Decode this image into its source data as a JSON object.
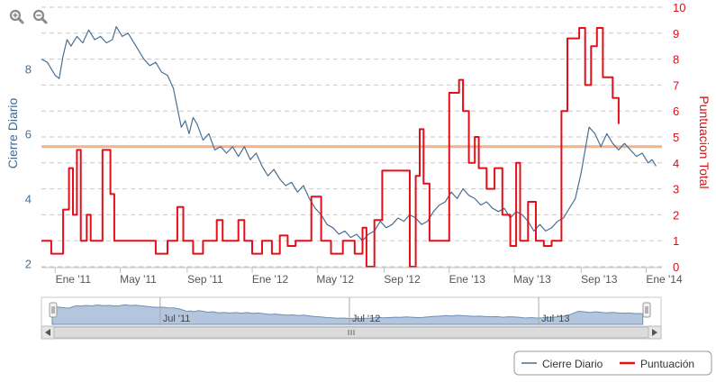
{
  "chart_data": {
    "type": "line",
    "xlabel": "",
    "y_left": {
      "label": "Cierre Diario",
      "ticks": [
        "2",
        "4",
        "6",
        "8"
      ],
      "range": [
        1.9,
        9.9
      ]
    },
    "y_right": {
      "label": "Puntuacion Total",
      "ticks": [
        "0",
        "1",
        "2",
        "3",
        "4",
        "5",
        "6",
        "7",
        "8",
        "9",
        "10"
      ],
      "range": [
        0,
        10
      ]
    },
    "x_ticks": [
      "Ene '11",
      "May '11",
      "Sep '11",
      "Ene '12",
      "May '12",
      "Sep '12",
      "Ene '13",
      "May '13",
      "Sep '13",
      "Ene '14"
    ],
    "x_range": [
      2010.93,
      2014.08
    ],
    "grid": true,
    "plot_band_value": 5.6,
    "series": [
      {
        "name": "Cierre Diario",
        "axis": "left",
        "color": "#4a6f93",
        "points": [
          [
            2010.93,
            8.3
          ],
          [
            2010.96,
            8.2
          ],
          [
            2010.98,
            8.0
          ],
          [
            2011.0,
            7.8
          ],
          [
            2011.02,
            7.7
          ],
          [
            2011.04,
            8.4
          ],
          [
            2011.06,
            8.9
          ],
          [
            2011.08,
            8.7
          ],
          [
            2011.11,
            9.0
          ],
          [
            2011.14,
            8.8
          ],
          [
            2011.17,
            9.2
          ],
          [
            2011.2,
            8.9
          ],
          [
            2011.23,
            9.0
          ],
          [
            2011.26,
            8.8
          ],
          [
            2011.29,
            8.9
          ],
          [
            2011.31,
            9.3
          ],
          [
            2011.34,
            9.0
          ],
          [
            2011.37,
            9.1
          ],
          [
            2011.4,
            8.8
          ],
          [
            2011.42,
            8.6
          ],
          [
            2011.45,
            8.3
          ],
          [
            2011.48,
            8.1
          ],
          [
            2011.51,
            8.2
          ],
          [
            2011.54,
            7.9
          ],
          [
            2011.57,
            7.8
          ],
          [
            2011.6,
            7.4
          ],
          [
            2011.62,
            6.8
          ],
          [
            2011.64,
            6.2
          ],
          [
            2011.66,
            6.4
          ],
          [
            2011.68,
            6.0
          ],
          [
            2011.7,
            6.5
          ],
          [
            2011.72,
            6.3
          ],
          [
            2011.75,
            5.8
          ],
          [
            2011.78,
            6.0
          ],
          [
            2011.81,
            5.5
          ],
          [
            2011.84,
            5.6
          ],
          [
            2011.87,
            5.4
          ],
          [
            2011.9,
            5.6
          ],
          [
            2011.93,
            5.3
          ],
          [
            2011.96,
            5.6
          ],
          [
            2011.99,
            5.2
          ],
          [
            2012.02,
            5.4
          ],
          [
            2012.05,
            5.0
          ],
          [
            2012.08,
            4.7
          ],
          [
            2012.11,
            4.9
          ],
          [
            2012.14,
            4.6
          ],
          [
            2012.17,
            4.4
          ],
          [
            2012.2,
            4.5
          ],
          [
            2012.23,
            4.2
          ],
          [
            2012.26,
            4.4
          ],
          [
            2012.29,
            4.0
          ],
          [
            2012.32,
            3.7
          ],
          [
            2012.35,
            3.5
          ],
          [
            2012.38,
            3.2
          ],
          [
            2012.41,
            3.1
          ],
          [
            2012.44,
            2.9
          ],
          [
            2012.47,
            3.0
          ],
          [
            2012.5,
            2.8
          ],
          [
            2012.53,
            2.9
          ],
          [
            2012.56,
            2.7
          ],
          [
            2012.59,
            2.9
          ],
          [
            2012.62,
            3.0
          ],
          [
            2012.65,
            3.3
          ],
          [
            2012.68,
            3.1
          ],
          [
            2012.71,
            3.2
          ],
          [
            2012.74,
            3.4
          ],
          [
            2012.77,
            3.3
          ],
          [
            2012.8,
            3.5
          ],
          [
            2012.83,
            3.4
          ],
          [
            2012.86,
            3.2
          ],
          [
            2012.89,
            3.3
          ],
          [
            2012.92,
            3.6
          ],
          [
            2012.95,
            3.8
          ],
          [
            2012.98,
            3.9
          ],
          [
            2013.01,
            4.2
          ],
          [
            2013.04,
            4.0
          ],
          [
            2013.07,
            4.3
          ],
          [
            2013.1,
            4.1
          ],
          [
            2013.13,
            4.0
          ],
          [
            2013.16,
            3.8
          ],
          [
            2013.19,
            3.9
          ],
          [
            2013.22,
            3.7
          ],
          [
            2013.25,
            3.6
          ],
          [
            2013.28,
            3.7
          ],
          [
            2013.31,
            3.4
          ],
          [
            2013.34,
            3.6
          ],
          [
            2013.37,
            3.5
          ],
          [
            2013.4,
            3.3
          ],
          [
            2013.43,
            3.0
          ],
          [
            2013.46,
            3.2
          ],
          [
            2013.49,
            3.0
          ],
          [
            2013.52,
            3.1
          ],
          [
            2013.55,
            3.3
          ],
          [
            2013.58,
            3.4
          ],
          [
            2013.61,
            3.7
          ],
          [
            2013.64,
            4.0
          ],
          [
            2013.67,
            4.8
          ],
          [
            2013.69,
            5.5
          ],
          [
            2013.71,
            6.2
          ],
          [
            2013.74,
            6.0
          ],
          [
            2013.77,
            5.6
          ],
          [
            2013.8,
            6.0
          ],
          [
            2013.83,
            5.7
          ],
          [
            2013.86,
            5.5
          ],
          [
            2013.89,
            5.7
          ],
          [
            2013.92,
            5.5
          ],
          [
            2013.95,
            5.3
          ],
          [
            2013.98,
            5.4
          ],
          [
            2014.01,
            5.1
          ],
          [
            2014.03,
            5.2
          ],
          [
            2014.05,
            5.0
          ]
        ]
      },
      {
        "name": "Puntuación",
        "axis": "right",
        "color": "#e3101c",
        "points": [
          [
            2010.93,
            1
          ],
          [
            2010.98,
            1
          ],
          [
            2010.98,
            0.5
          ],
          [
            2011.04,
            0.5
          ],
          [
            2011.04,
            2.2
          ],
          [
            2011.07,
            2.2
          ],
          [
            2011.07,
            3.8
          ],
          [
            2011.09,
            3.8
          ],
          [
            2011.09,
            2
          ],
          [
            2011.11,
            2
          ],
          [
            2011.11,
            4.5
          ],
          [
            2011.13,
            4.5
          ],
          [
            2011.13,
            1
          ],
          [
            2011.16,
            1
          ],
          [
            2011.16,
            2
          ],
          [
            2011.18,
            2
          ],
          [
            2011.18,
            1
          ],
          [
            2011.24,
            1
          ],
          [
            2011.24,
            4.5
          ],
          [
            2011.28,
            4.5
          ],
          [
            2011.28,
            2.8
          ],
          [
            2011.3,
            2.8
          ],
          [
            2011.3,
            1
          ],
          [
            2011.51,
            1
          ],
          [
            2011.51,
            0.5
          ],
          [
            2011.57,
            0.5
          ],
          [
            2011.57,
            1
          ],
          [
            2011.62,
            1
          ],
          [
            2011.62,
            2.3
          ],
          [
            2011.65,
            2.3
          ],
          [
            2011.65,
            1
          ],
          [
            2011.7,
            1
          ],
          [
            2011.7,
            0.5
          ],
          [
            2011.75,
            0.5
          ],
          [
            2011.75,
            1
          ],
          [
            2011.82,
            1
          ],
          [
            2011.82,
            1.8
          ],
          [
            2011.85,
            1.8
          ],
          [
            2011.85,
            1
          ],
          [
            2011.93,
            1
          ],
          [
            2011.93,
            1.8
          ],
          [
            2011.96,
            1.8
          ],
          [
            2011.96,
            1
          ],
          [
            2012.0,
            1
          ],
          [
            2012.0,
            0.5
          ],
          [
            2012.05,
            0.5
          ],
          [
            2012.05,
            1
          ],
          [
            2012.1,
            1
          ],
          [
            2012.1,
            0.5
          ],
          [
            2012.14,
            0.5
          ],
          [
            2012.14,
            1.2
          ],
          [
            2012.18,
            1.2
          ],
          [
            2012.18,
            0.8
          ],
          [
            2012.22,
            0.8
          ],
          [
            2012.22,
            1
          ],
          [
            2012.3,
            1
          ],
          [
            2012.3,
            2.7
          ],
          [
            2012.35,
            2.7
          ],
          [
            2012.35,
            1
          ],
          [
            2012.4,
            1
          ],
          [
            2012.4,
            0.5
          ],
          [
            2012.46,
            0.5
          ],
          [
            2012.46,
            1
          ],
          [
            2012.52,
            1
          ],
          [
            2012.52,
            0.5
          ],
          [
            2012.56,
            0.5
          ],
          [
            2012.56,
            1.5
          ],
          [
            2012.58,
            1.5
          ],
          [
            2012.58,
            0
          ],
          [
            2012.62,
            0
          ],
          [
            2012.62,
            1.8
          ],
          [
            2012.66,
            1.8
          ],
          [
            2012.66,
            3.7
          ],
          [
            2012.8,
            3.7
          ],
          [
            2012.8,
            0
          ],
          [
            2012.83,
            0
          ],
          [
            2012.83,
            3.5
          ],
          [
            2012.85,
            3.5
          ],
          [
            2012.85,
            5.3
          ],
          [
            2012.87,
            5.3
          ],
          [
            2012.87,
            3.2
          ],
          [
            2012.9,
            3.2
          ],
          [
            2012.9,
            1
          ],
          [
            2013.0,
            1
          ],
          [
            2013.0,
            6.7
          ],
          [
            2013.05,
            6.7
          ],
          [
            2013.05,
            7.2
          ],
          [
            2013.07,
            7.2
          ],
          [
            2013.07,
            6
          ],
          [
            2013.1,
            6
          ],
          [
            2013.1,
            4
          ],
          [
            2013.13,
            4
          ],
          [
            2013.13,
            5
          ],
          [
            2013.15,
            5
          ],
          [
            2013.15,
            3.8
          ],
          [
            2013.19,
            3.8
          ],
          [
            2013.19,
            3
          ],
          [
            2013.23,
            3
          ],
          [
            2013.23,
            3.8
          ],
          [
            2013.27,
            3.8
          ],
          [
            2013.27,
            2
          ],
          [
            2013.31,
            2
          ],
          [
            2013.31,
            0.8
          ],
          [
            2013.34,
            0.8
          ],
          [
            2013.34,
            4
          ],
          [
            2013.36,
            4
          ],
          [
            2013.36,
            1
          ],
          [
            2013.4,
            1
          ],
          [
            2013.4,
            2.5
          ],
          [
            2013.44,
            2.5
          ],
          [
            2013.44,
            1
          ],
          [
            2013.48,
            1
          ],
          [
            2013.48,
            0.8
          ],
          [
            2013.52,
            0.8
          ],
          [
            2013.52,
            1
          ],
          [
            2013.57,
            1
          ],
          [
            2013.57,
            6
          ],
          [
            2013.6,
            6
          ],
          [
            2013.6,
            8.8
          ],
          [
            2013.66,
            8.8
          ],
          [
            2013.66,
            9.2
          ],
          [
            2013.69,
            9.2
          ],
          [
            2013.69,
            7
          ],
          [
            2013.72,
            7
          ],
          [
            2013.72,
            8.5
          ],
          [
            2013.75,
            8.5
          ],
          [
            2013.75,
            9.2
          ],
          [
            2013.78,
            9.2
          ],
          [
            2013.78,
            7.3
          ],
          [
            2013.83,
            7.3
          ],
          [
            2013.83,
            6.5
          ],
          [
            2013.86,
            6.5
          ],
          [
            2013.86,
            5.5
          ]
        ]
      }
    ]
  },
  "navigator": {
    "labels": [
      "Jul '11",
      "Jul '12",
      "Jul '13"
    ]
  },
  "legend": {
    "items": [
      {
        "label": "Cierre Diario",
        "color": "#4a6f93"
      },
      {
        "label": "Puntuación",
        "color": "#e3101c"
      }
    ]
  },
  "toolbar": {
    "zoom_in_icon": "zoom-in-icon",
    "zoom_out_icon": "zoom-out-icon"
  }
}
